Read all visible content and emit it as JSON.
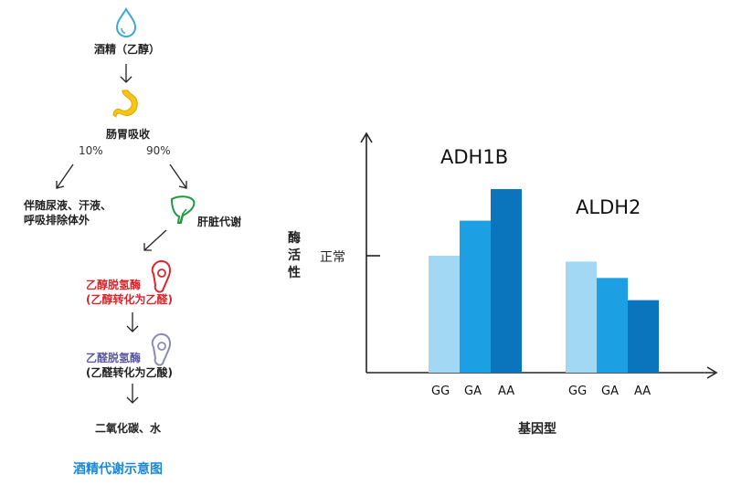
{
  "flow": {
    "step1": "酒精（乙醇）",
    "step2": "肠胃吸收",
    "pct_left": "10%",
    "pct_right": "90%",
    "excretion_line1": "伴随尿液、汗液、",
    "excretion_line2": "呼吸排除体外",
    "liver": "肝脏代谢",
    "adh_line1": "乙醇脱氢酶",
    "adh_line2": "(乙醇转化为乙醛)",
    "aldh_line1": "乙醛脱氢酶",
    "aldh_line2": "(乙醛转化为乙酸)",
    "final": "二氧化碳、水",
    "title": "酒精代谢示意图"
  },
  "chart_data": {
    "type": "bar",
    "ylabel": "酶活性",
    "xlabel": "基因型",
    "y_reference_label": "正常",
    "y_reference_value": 1.0,
    "groups": [
      {
        "name": "ADH1B",
        "categories": [
          "GG",
          "GA",
          "AA"
        ],
        "values": [
          1.0,
          1.3,
          1.57
        ],
        "colors": [
          "#a3d8f4",
          "#1ca0e3",
          "#0a74bc"
        ]
      },
      {
        "name": "ALDH2",
        "categories": [
          "GG",
          "GA",
          "AA"
        ],
        "values": [
          0.95,
          0.81,
          0.62
        ],
        "colors": [
          "#a3d8f4",
          "#1ca0e3",
          "#0a74bc"
        ]
      }
    ]
  },
  "colors": {
    "water_drop": "#39a9dc",
    "stomach": "#f4c518",
    "liver": "#1e9a3e",
    "adh_icon": "#d9262c",
    "aldh_icon": "#8a8ab8",
    "title": "#1a88d6"
  }
}
